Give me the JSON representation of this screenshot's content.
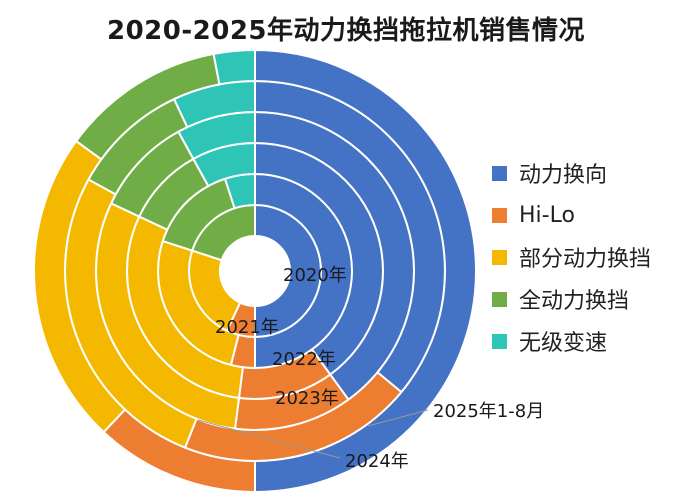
{
  "chart_data": {
    "type": "pie",
    "subtype": "multi-ring-donut",
    "title": "2020-2025年动力换挡拖拉机销售情况",
    "categories": [
      "动力换向",
      "Hi-Lo",
      "部分动力换挡",
      "全动力换挡",
      "无级变速"
    ],
    "colors": [
      "#4472C4",
      "#ED7D31",
      "#F4B800",
      "#70AD47",
      "#2EC4B6"
    ],
    "rings": [
      {
        "name": "2020年",
        "values": [
          50,
          7,
          23,
          20,
          0
        ]
      },
      {
        "name": "2021年",
        "values": [
          50,
          4,
          26,
          15,
          5
        ]
      },
      {
        "name": "2022年",
        "values": [
          40,
          12,
          30,
          10,
          8
        ]
      },
      {
        "name": "2023年",
        "values": [
          40,
          12,
          30,
          10,
          8
        ]
      },
      {
        "name": "2024年",
        "values": [
          36,
          20,
          27,
          10,
          7
        ]
      },
      {
        "name": "2025年1-8月",
        "values": [
          50,
          12,
          23,
          12,
          3
        ]
      }
    ],
    "legend_position": "right"
  }
}
